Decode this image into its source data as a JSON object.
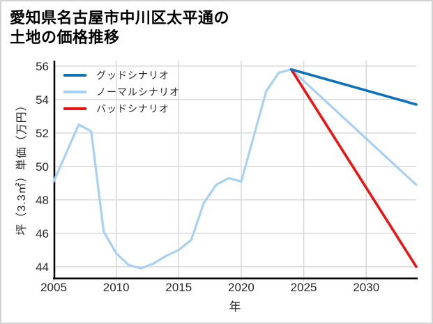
{
  "title": {
    "line1": "愛知県名古屋市中川区太平通の",
    "line2": "土地の価格推移"
  },
  "chart_data": {
    "type": "line",
    "title": "愛知県名古屋市中川区太平通の土地の価格推移",
    "xlabel": "年",
    "ylabel": "坪（3.3㎡）単価（万円）",
    "xlim": [
      2005,
      2034.2
    ],
    "ylim": [
      43.3,
      56.35
    ],
    "xticks": [
      2005,
      2010,
      2015,
      2020,
      2025,
      2030
    ],
    "yticks": [
      44,
      46,
      48,
      50,
      52,
      54,
      56
    ],
    "grid": true,
    "legend_position": "top-left",
    "series": [
      {
        "name": "グッドシナリオ",
        "color": "#0d72b9",
        "width": 3.6,
        "z": 3,
        "x": [
          2024,
          2034
        ],
        "y": [
          55.8,
          53.7
        ]
      },
      {
        "name": "ノーマルシナリオ",
        "color": "#a6d1f5",
        "width": 3.2,
        "z": 1,
        "x": [
          2005,
          2006,
          2007,
          2008,
          2009,
          2010,
          2011,
          2012,
          2013,
          2014,
          2015,
          2016,
          2017,
          2018,
          2019,
          2020,
          2021,
          2022,
          2023,
          2024,
          2034
        ],
        "y": [
          49.1,
          50.8,
          52.5,
          52.1,
          46.1,
          44.8,
          44.1,
          43.9,
          44.2,
          44.65,
          45.0,
          45.6,
          47.8,
          48.9,
          49.3,
          49.1,
          51.8,
          54.5,
          55.6,
          55.8,
          48.9
        ]
      },
      {
        "name": "バッドシナリオ",
        "color": "#ee1111",
        "width": 3.6,
        "z": 2,
        "x": [
          2024,
          2034
        ],
        "y": [
          55.8,
          44.0
        ]
      }
    ],
    "colors": {
      "grid": "#d6d6d6",
      "axis": "#000000",
      "tick_text": "#262626"
    }
  }
}
